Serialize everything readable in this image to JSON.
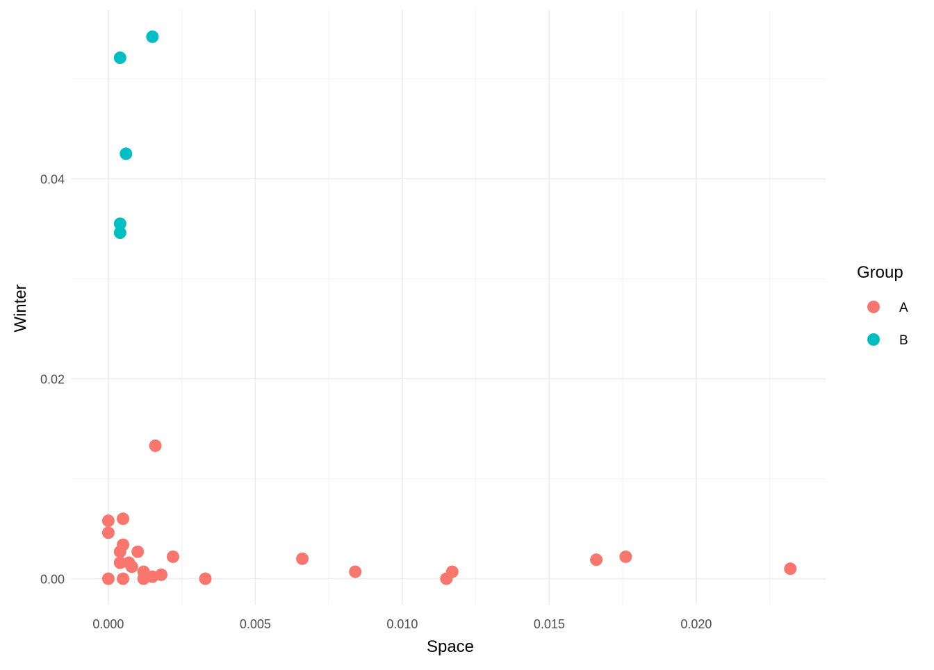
{
  "chart_data": {
    "type": "scatter",
    "title": "",
    "xlabel": "Space",
    "ylabel": "Winter",
    "xlim": [
      -0.00125,
      0.0244
    ],
    "ylim": [
      -0.0026,
      0.0569
    ],
    "x_ticks": [
      0.0,
      0.005,
      0.01,
      0.015,
      0.02
    ],
    "x_tick_labels": [
      "0.000",
      "0.005",
      "0.010",
      "0.015",
      "0.020"
    ],
    "x_minor_ticks": [
      -0.0025,
      0.0025,
      0.0075,
      0.0125,
      0.0175,
      0.0225
    ],
    "y_ticks": [
      0.0,
      0.02,
      0.04
    ],
    "y_tick_labels": [
      "0.00",
      "0.02",
      "0.04"
    ],
    "y_minor_ticks": [
      0.01,
      0.03,
      0.05
    ],
    "grid": true,
    "legend": {
      "title": "Group",
      "position": "right",
      "entries": [
        {
          "label": "A",
          "color": "#F8766D"
        },
        {
          "label": "B",
          "color": "#00BFC4"
        }
      ]
    },
    "series": [
      {
        "name": "A",
        "color": "#F8766D",
        "points": [
          [
            0.0,
            0.0058
          ],
          [
            0.0,
            0.0046
          ],
          [
            0.0,
            0.0
          ],
          [
            0.0005,
            0.006
          ],
          [
            0.0005,
            0.0034
          ],
          [
            0.0004,
            0.0027
          ],
          [
            0.0004,
            0.0016
          ],
          [
            0.0005,
            0.0
          ],
          [
            0.0007,
            0.0016
          ],
          [
            0.0008,
            0.0012
          ],
          [
            0.001,
            0.0027
          ],
          [
            0.0012,
            0.0007
          ],
          [
            0.0012,
            0.0
          ],
          [
            0.0015,
            0.0002
          ],
          [
            0.0018,
            0.0004
          ],
          [
            0.0016,
            0.0133
          ],
          [
            0.0022,
            0.0022
          ],
          [
            0.0033,
            0.0
          ],
          [
            0.0066,
            0.002
          ],
          [
            0.0084,
            0.0007
          ],
          [
            0.0115,
            0.0
          ],
          [
            0.0117,
            0.0007
          ],
          [
            0.0166,
            0.0019
          ],
          [
            0.0176,
            0.0022
          ],
          [
            0.0232,
            0.001
          ]
        ]
      },
      {
        "name": "B",
        "color": "#00BFC4",
        "points": [
          [
            0.0004,
            0.0521
          ],
          [
            0.0015,
            0.0542
          ],
          [
            0.0006,
            0.0425
          ],
          [
            0.0004,
            0.0355
          ],
          [
            0.0004,
            0.0346
          ]
        ]
      }
    ]
  }
}
